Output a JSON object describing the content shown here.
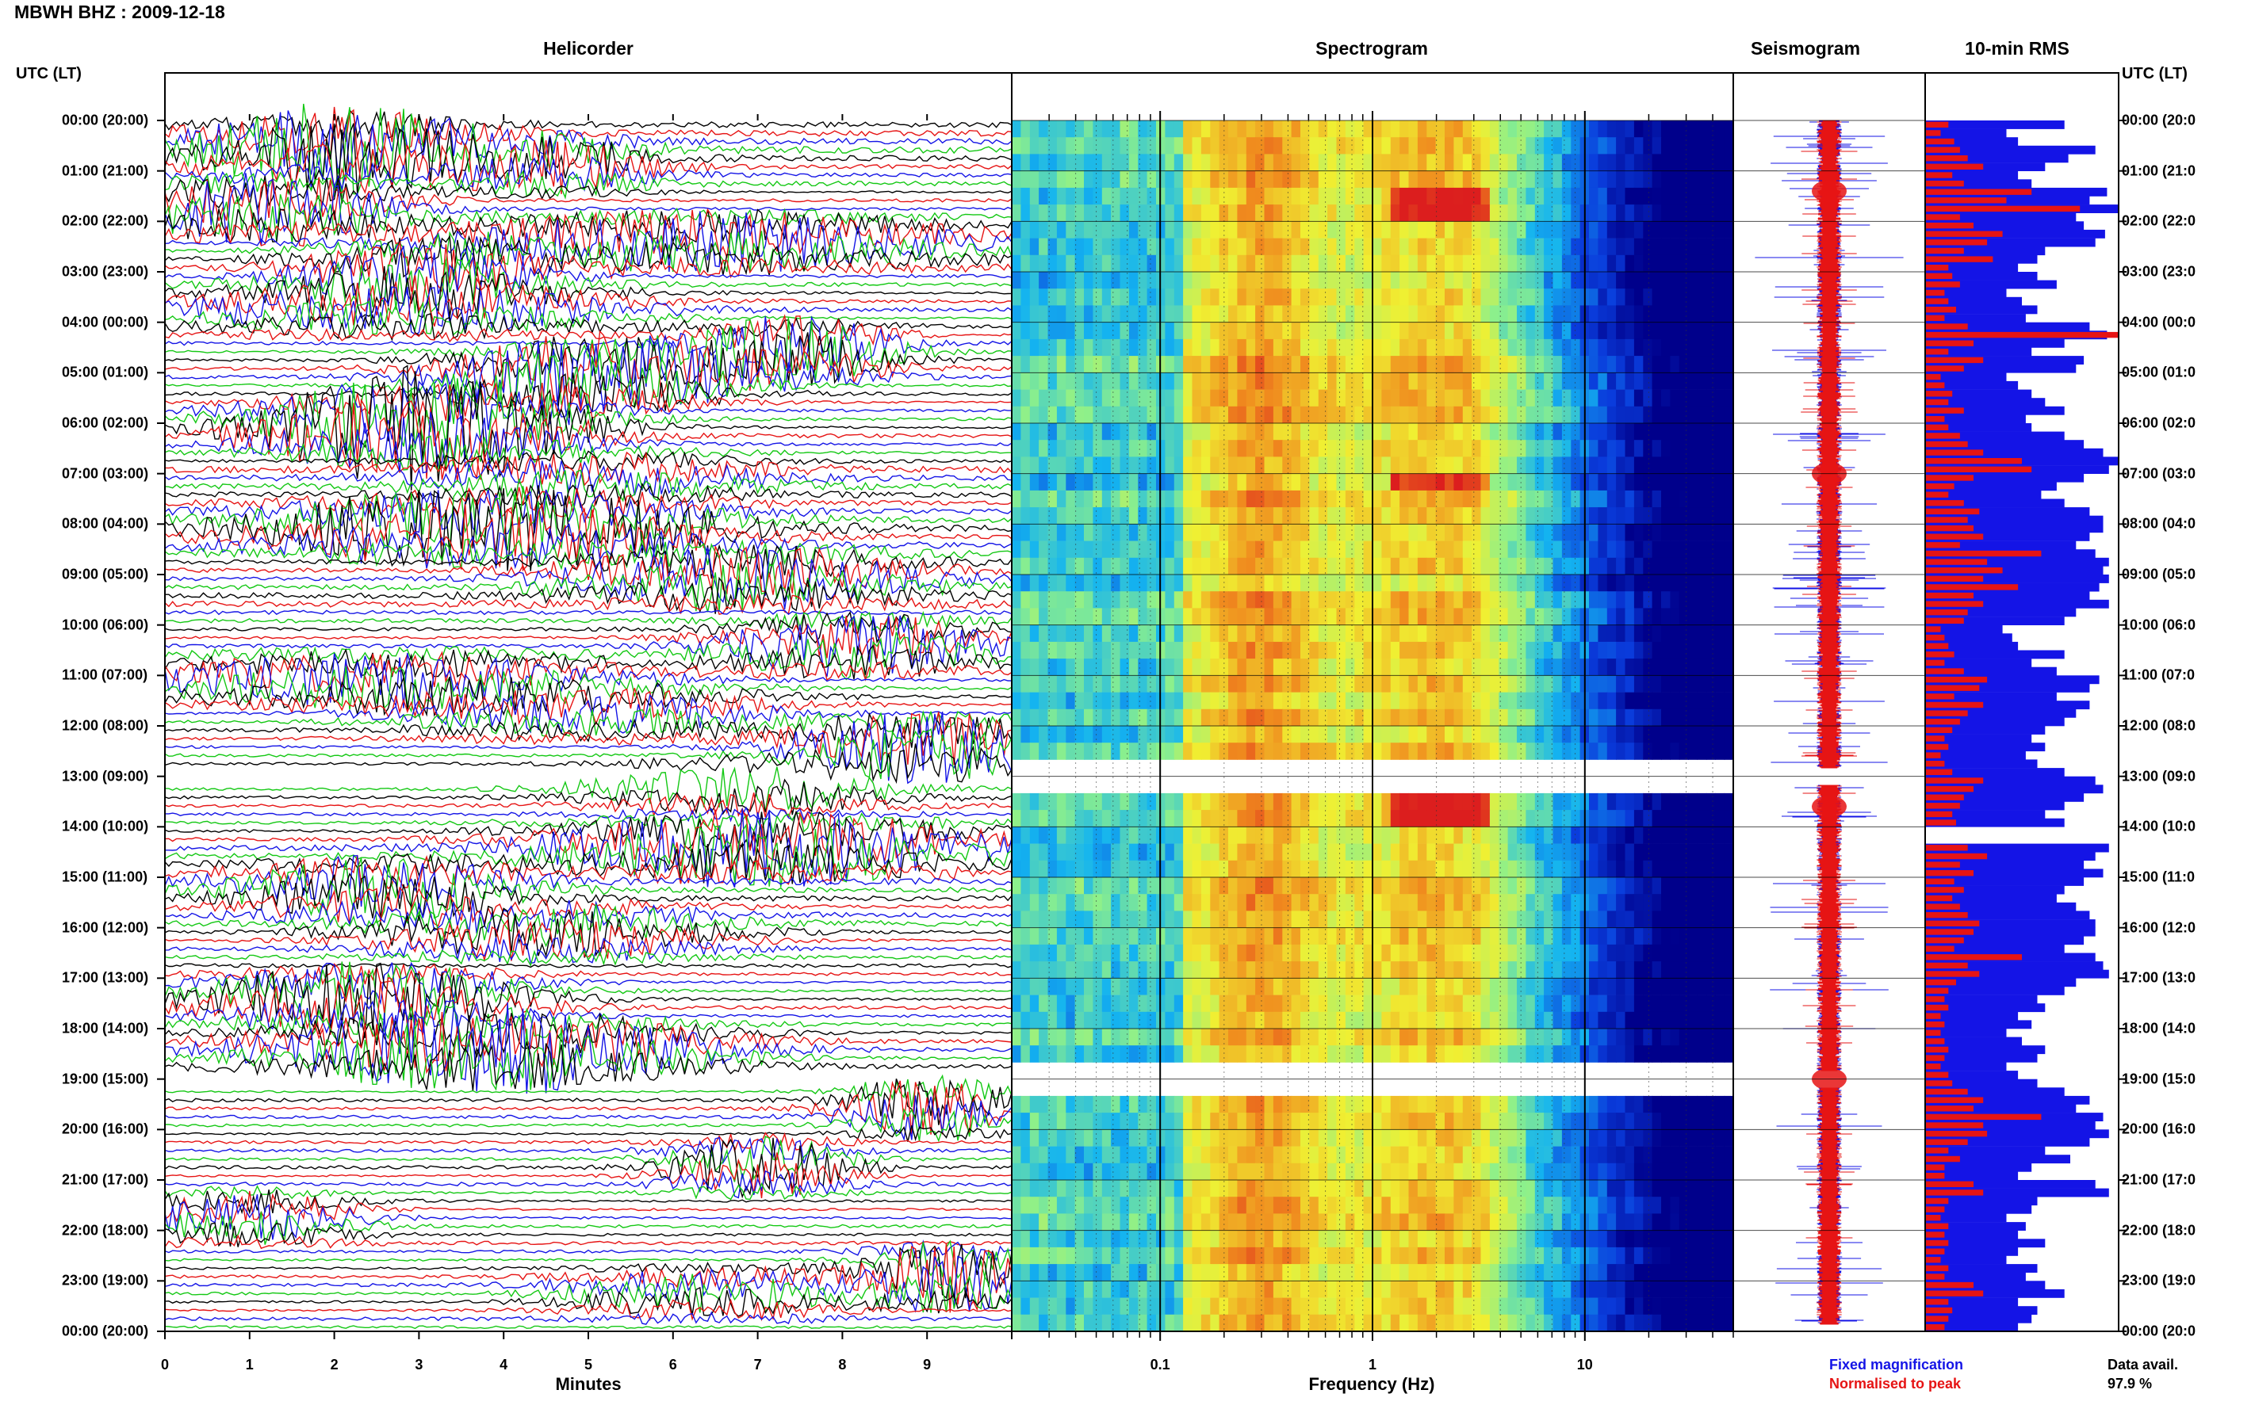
{
  "header": {
    "title": "MBWH BHZ : 2009-12-18"
  },
  "panels": {
    "helicorder": "Helicorder",
    "spectrogram": "Spectrogram",
    "seismogram": "Seismogram",
    "rms": "10-min RMS"
  },
  "axis": {
    "left_head": "UTC (LT)",
    "right_head": "UTC (LT)",
    "x_minutes_title": "Minutes",
    "x_frequency_title": "Frequency (Hz)"
  },
  "legend": {
    "fixed": "Fixed magnification",
    "normalised": "Normalised to peak",
    "fixed_color": "#1414e6",
    "normalised_color": "#e61414"
  },
  "data_availability": {
    "label": "Data avail.",
    "value": "97.9 %"
  },
  "chart_data": [
    {
      "type": "line",
      "panel": "helicorder",
      "xlabel": "Minutes",
      "x_ticks": [
        "0",
        "1",
        "2",
        "3",
        "4",
        "5",
        "6",
        "7",
        "8",
        "9"
      ],
      "xlim": [
        0,
        10
      ],
      "rows_per_hour": 6,
      "trace_colors": [
        "#000000",
        "#e61414",
        "#1414e6",
        "#14c814"
      ],
      "hour_labels_left": [
        "00:00 (20:00)",
        "01:00 (21:00)",
        "02:00 (22:00)",
        "03:00 (23:00)",
        "04:00 (00:00)",
        "05:00 (01:00)",
        "06:00 (02:00)",
        "07:00 (03:00)",
        "08:00 (04:00)",
        "09:00 (05:00)",
        "10:00 (06:00)",
        "11:00 (07:00)",
        "12:00 (08:00)",
        "13:00 (09:00)",
        "14:00 (10:00)",
        "15:00 (11:00)",
        "16:00 (12:00)",
        "17:00 (13:00)",
        "18:00 (14:00)",
        "19:00 (15:00)",
        "20:00 (16:00)",
        "21:00 (17:00)",
        "22:00 (18:00)",
        "23:00 (19:00)",
        "00:00 (20:00)"
      ],
      "hour_labels_right": [
        "00:00 (20:0",
        "01:00 (21:0",
        "02:00 (22:0",
        "03:00 (23:0",
        "04:00 (00:0",
        "05:00 (01:0",
        "06:00 (02:0",
        "07:00 (03:0",
        "08:00 (04:0",
        "09:00 (05:0",
        "10:00 (06:0",
        "11:00 (07:0",
        "12:00 (08:0",
        "13:00 (09:0",
        "14:00 (10:0",
        "15:00 (11:0",
        "16:00 (12:0",
        "17:00 (13:0",
        "18:00 (14:0",
        "19:00 (15:0",
        "20:00 (16:0",
        "21:00 (17:0",
        "22:00 (18:0",
        "23:00 (19:0",
        "00:00 (20:0"
      ]
    },
    {
      "type": "heatmap",
      "panel": "spectrogram",
      "xlabel": "Frequency (Hz)",
      "x_scale": "log",
      "xlim": [
        0.02,
        50
      ],
      "x_ticks": [
        "0.1",
        "1",
        "10"
      ],
      "colormap": [
        "#00008b",
        "#0a3cdc",
        "#14b4f0",
        "#8cf08c",
        "#f0f032",
        "#f08c1e",
        "#dc1e1e"
      ],
      "peak_frequencies_hz": [
        0.3,
        2.0
      ]
    },
    {
      "type": "line",
      "panel": "seismogram",
      "series": [
        {
          "name": "Fixed magnification",
          "color": "#1414e6"
        },
        {
          "name": "Normalised to peak",
          "color": "#e61414"
        }
      ]
    },
    {
      "type": "bar",
      "panel": "rms",
      "orientation": "horizontal",
      "row_count": 144,
      "series": [
        {
          "name": "Fixed magnification",
          "color": "#1414e6",
          "values": [
            0.72,
            0.42,
            0.48,
            0.88,
            0.74,
            0.62,
            0.48,
            0.55,
            0.94,
            0.85,
            1.0,
            0.78,
            0.82,
            0.93,
            0.88,
            0.62,
            0.58,
            0.48,
            0.58,
            0.68,
            0.42,
            0.5,
            0.58,
            0.52,
            0.85,
            0.94,
            0.72,
            0.55,
            0.82,
            0.78,
            0.42,
            0.48,
            0.55,
            0.62,
            0.72,
            0.52,
            0.55,
            0.72,
            0.82,
            0.92,
            1.0,
            0.95,
            0.82,
            0.68,
            0.6,
            0.72,
            0.85,
            0.92,
            0.92,
            0.85,
            0.78,
            0.88,
            0.95,
            0.92,
            0.95,
            0.9,
            0.85,
            0.95,
            0.78,
            0.72,
            0.4,
            0.45,
            0.48,
            0.72,
            0.55,
            0.68,
            0.9,
            0.85,
            0.68,
            0.85,
            0.78,
            0.72,
            0.62,
            0.55,
            0.62,
            0.52,
            0.58,
            0.72,
            0.88,
            0.92,
            0.82,
            0.72,
            0.62,
            0.72,
            0.0,
            0.0,
            0.95,
            0.88,
            0.82,
            0.92,
            0.82,
            0.72,
            0.68,
            0.78,
            0.85,
            0.88,
            0.88,
            0.82,
            0.72,
            0.88,
            0.92,
            0.95,
            0.78,
            0.72,
            0.58,
            0.62,
            0.48,
            0.55,
            0.42,
            0.5,
            0.62,
            0.58,
            0.42,
            0.48,
            0.58,
            0.72,
            0.85,
            0.78,
            0.92,
            0.88,
            0.95,
            0.85,
            0.62,
            0.75,
            0.55,
            0.48,
            0.88,
            0.95,
            0.58,
            0.55,
            0.42,
            0.52,
            0.48,
            0.62,
            0.48,
            0.42,
            0.58,
            0.52,
            0.62,
            0.72,
            0.48,
            0.58,
            0.55,
            0.48
          ]
        },
        {
          "name": "Normalised to peak",
          "color": "#e61414",
          "values": [
            0.12,
            0.08,
            0.15,
            0.18,
            0.22,
            0.3,
            0.14,
            0.2,
            0.55,
            0.42,
            0.8,
            0.18,
            0.25,
            0.4,
            0.32,
            0.2,
            0.35,
            0.12,
            0.14,
            0.18,
            0.1,
            0.12,
            0.16,
            0.1,
            0.22,
            1.0,
            0.25,
            0.12,
            0.3,
            0.2,
            0.08,
            0.1,
            0.14,
            0.12,
            0.2,
            0.1,
            0.12,
            0.18,
            0.22,
            0.3,
            0.5,
            0.55,
            0.25,
            0.15,
            0.12,
            0.2,
            0.28,
            0.22,
            0.25,
            0.3,
            0.18,
            0.6,
            0.32,
            0.4,
            0.3,
            0.48,
            0.25,
            0.3,
            0.22,
            0.2,
            0.08,
            0.1,
            0.12,
            0.15,
            0.1,
            0.2,
            0.32,
            0.28,
            0.15,
            0.3,
            0.22,
            0.18,
            0.14,
            0.1,
            0.12,
            0.08,
            0.1,
            0.14,
            0.3,
            0.25,
            0.2,
            0.18,
            0.14,
            0.16,
            0.0,
            0.0,
            0.22,
            0.32,
            0.18,
            0.25,
            0.15,
            0.2,
            0.14,
            0.18,
            0.22,
            0.28,
            0.25,
            0.2,
            0.15,
            0.5,
            0.22,
            0.28,
            0.16,
            0.12,
            0.1,
            0.12,
            0.08,
            0.1,
            0.08,
            0.1,
            0.12,
            0.1,
            0.08,
            0.12,
            0.14,
            0.22,
            0.3,
            0.25,
            0.6,
            0.3,
            0.32,
            0.22,
            0.12,
            0.18,
            0.1,
            0.1,
            0.25,
            0.3,
            0.12,
            0.1,
            0.08,
            0.12,
            0.1,
            0.12,
            0.1,
            0.08,
            0.12,
            0.1,
            0.25,
            0.3,
            0.12,
            0.14,
            0.12,
            0.1
          ]
        }
      ]
    }
  ]
}
